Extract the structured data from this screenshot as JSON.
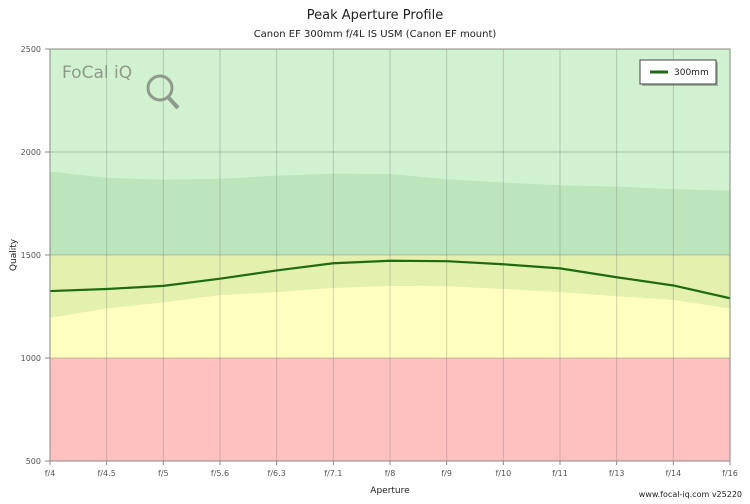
{
  "chart_data": {
    "type": "line",
    "title": "Peak Aperture Profile",
    "subtitle": "Canon EF 300mm f/4L IS USM (Canon EF mount)",
    "xlabel": "Aperture",
    "ylabel": "Quality",
    "categories": [
      "f/4",
      "f/4.5",
      "f/5",
      "f/5.6",
      "f/6.3",
      "f/7.1",
      "f/8",
      "f/9",
      "f/10",
      "f/11",
      "f/13",
      "f/14",
      "f/16"
    ],
    "ylim": [
      500,
      2500
    ],
    "yticks": [
      "500",
      "1000",
      "1500",
      "2000",
      "2500"
    ],
    "grid": true,
    "legend_position": "top-right",
    "series": [
      {
        "name": "300mm",
        "color": "#1f6b10",
        "values": [
          1325,
          1335,
          1350,
          1385,
          1425,
          1460,
          1472,
          1470,
          1455,
          1435,
          1392,
          1352,
          1290
        ]
      }
    ],
    "upper_band": [
      1905,
      1875,
      1865,
      1870,
      1885,
      1895,
      1893,
      1868,
      1852,
      1838,
      1832,
      1820,
      1812
    ],
    "lower_band": [
      1195,
      1240,
      1270,
      1305,
      1320,
      1340,
      1350,
      1348,
      1335,
      1320,
      1300,
      1282,
      1240
    ],
    "quality_zones": [
      {
        "from": 500,
        "to": 1000,
        "color": "#ffc0c0"
      },
      {
        "from": 1000,
        "to": 1500,
        "color": "#ffffc0"
      },
      {
        "from": 1500,
        "to": 2500,
        "color": "#d0f2d0"
      }
    ],
    "band_color": "#5aa85a",
    "footer": "www.focal-iq.com  v25220",
    "logo": "FoCal iQ"
  }
}
